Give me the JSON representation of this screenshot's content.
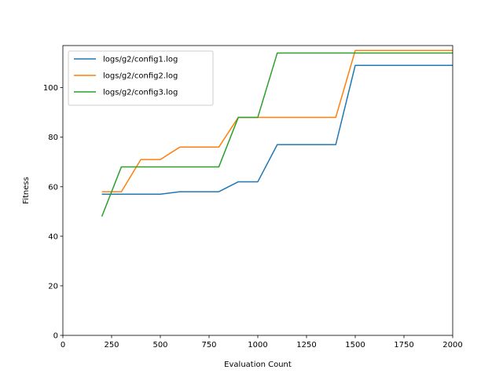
{
  "chart_data": {
    "type": "line",
    "title": "",
    "xlabel": "Evaluation Count",
    "ylabel": "Fitness",
    "xlim": [
      0,
      2000
    ],
    "ylim": [
      0,
      117
    ],
    "xticks": [
      0,
      250,
      500,
      750,
      1000,
      1250,
      1500,
      1750,
      2000
    ],
    "yticks": [
      0,
      20,
      40,
      60,
      80,
      100
    ],
    "grid": false,
    "legend_position": "upper-left",
    "series": [
      {
        "name": "logs/g2/config1.log",
        "color": "#1f77b4",
        "x": [
          200,
          300,
          400,
          500,
          600,
          700,
          800,
          900,
          1000,
          1100,
          1200,
          1300,
          1400,
          1500,
          1600,
          1700,
          1800,
          1900,
          2000
        ],
        "y": [
          57,
          57,
          57,
          57,
          58,
          58,
          58,
          62,
          62,
          77,
          77,
          77,
          77,
          109,
          109,
          109,
          109,
          109,
          109
        ]
      },
      {
        "name": "logs/g2/config2.log",
        "color": "#ff7f0e",
        "x": [
          200,
          300,
          400,
          500,
          600,
          700,
          800,
          900,
          1000,
          1100,
          1200,
          1300,
          1400,
          1500,
          1600,
          1700,
          1800,
          1900,
          2000
        ],
        "y": [
          58,
          58,
          71,
          71,
          76,
          76,
          76,
          88,
          88,
          88,
          88,
          88,
          88,
          115,
          115,
          115,
          115,
          115,
          115
        ]
      },
      {
        "name": "logs/g2/config3.log",
        "color": "#2ca02c",
        "x": [
          200,
          300,
          400,
          500,
          600,
          700,
          800,
          900,
          1000,
          1100,
          1200,
          1300,
          1400,
          1500,
          1600,
          1700,
          1800,
          1900,
          2000
        ],
        "y": [
          48,
          68,
          68,
          68,
          68,
          68,
          68,
          88,
          88,
          114,
          114,
          114,
          114,
          114,
          114,
          114,
          114,
          114,
          114
        ]
      }
    ]
  }
}
